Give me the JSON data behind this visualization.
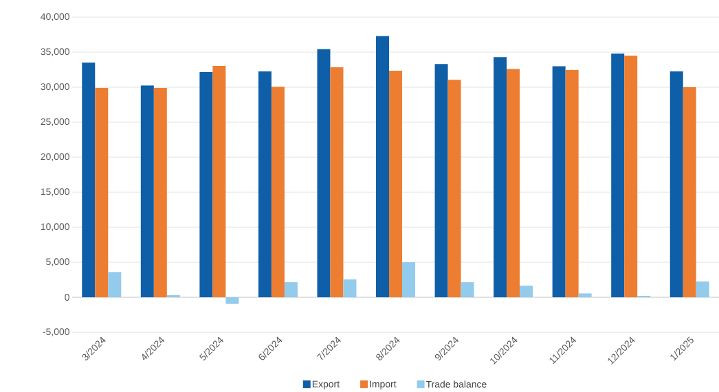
{
  "chart_data": {
    "type": "bar",
    "categories": [
      "3/2024",
      "4/2024",
      "5/2024",
      "6/2024",
      "7/2024",
      "8/2024",
      "9/2024",
      "10/2024",
      "11/2024",
      "12/2024",
      "1/2025"
    ],
    "series": [
      {
        "name": "Export",
        "color": "#0f5ea8",
        "values": [
          33500,
          30250,
          32150,
          32250,
          35450,
          37300,
          33300,
          34300,
          33000,
          34800,
          32250
        ]
      },
      {
        "name": "Import",
        "color": "#ed7d31",
        "values": [
          29900,
          29900,
          33050,
          30050,
          32850,
          32350,
          31050,
          32600,
          32450,
          34500,
          30000
        ]
      },
      {
        "name": "Trade balance",
        "color": "#93cbec",
        "values": [
          3600,
          300,
          -950,
          2150,
          2550,
          5000,
          2150,
          1650,
          550,
          200,
          2250
        ]
      }
    ],
    "ylim": [
      -5000,
      40000
    ],
    "yticks": [
      {
        "value": -5000,
        "label": "-5,000"
      },
      0,
      {
        "value": 5000,
        "label": "5,000"
      },
      {
        "value": 10000,
        "label": "10,000"
      },
      {
        "value": 15000,
        "label": "15,000"
      },
      {
        "value": 20000,
        "label": "20,000"
      },
      {
        "value": 25000,
        "label": "25,000"
      },
      {
        "value": 30000,
        "label": "30,000"
      },
      {
        "value": 35000,
        "label": "35,000"
      },
      {
        "value": 40000,
        "label": "40,000"
      }
    ],
    "grid": "y",
    "legend": "bottom"
  }
}
